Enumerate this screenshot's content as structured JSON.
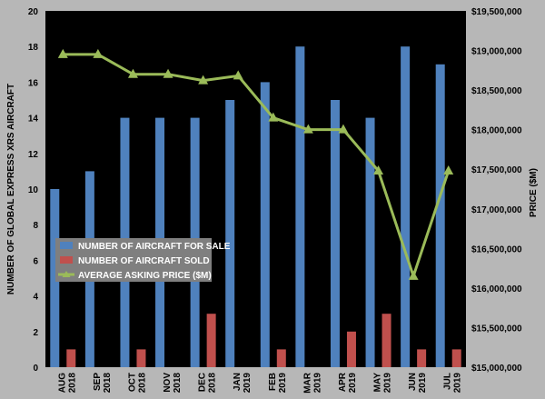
{
  "chart_data": {
    "type": "bar",
    "title": "",
    "categories": [
      [
        "AUG",
        "2018"
      ],
      [
        "SEP",
        "2018"
      ],
      [
        "OCT",
        "2018"
      ],
      [
        "NOV",
        "2018"
      ],
      [
        "DEC",
        "2018"
      ],
      [
        "JAN",
        "2019"
      ],
      [
        "FEB",
        "2019"
      ],
      [
        "MAR",
        "2019"
      ],
      [
        "APR",
        "2019"
      ],
      [
        "MAY",
        "2019"
      ],
      [
        "JUN",
        "2019"
      ],
      [
        "JUL",
        "2019"
      ]
    ],
    "series": [
      {
        "name": "NUMBER OF AIRCRAFT FOR SALE",
        "type": "bar",
        "axis": "left",
        "color": "#4f81bd",
        "values": [
          10,
          11,
          14,
          14,
          14,
          15,
          16,
          18,
          15,
          14,
          18,
          17
        ]
      },
      {
        "name": "NUMBER OF AIRCRAFT SOLD",
        "type": "bar",
        "axis": "left",
        "color": "#c0504d",
        "values": [
          1,
          0,
          1,
          0,
          3,
          0,
          1,
          0,
          2,
          3,
          1,
          1
        ]
      },
      {
        "name": "AVERAGE ASKING PRICE ($M)",
        "type": "line",
        "axis": "right",
        "color": "#9bbb59",
        "values": [
          18950000,
          18950000,
          18700000,
          18700000,
          18620000,
          18680000,
          18150000,
          18000000,
          18000000,
          17480000,
          16150000,
          17480000
        ]
      }
    ],
    "ylabel": "NUMBER OF GLOBAL EXPRESS XRS AIRCRAFT",
    "y2label": "PRICE ($M)",
    "ylim": [
      0,
      20
    ],
    "yticks": [
      "0",
      "2",
      "4",
      "6",
      "8",
      "10",
      "12",
      "14",
      "16",
      "18",
      "20"
    ],
    "y2lim": [
      15000000,
      19500000
    ],
    "y2ticks": [
      "$15,000,000",
      "$15,500,000",
      "$16,000,000",
      "$16,500,000",
      "$17,000,000",
      "$17,500,000",
      "$18,000,000",
      "$18,500,000",
      "$19,000,000",
      "$19,500,000"
    ],
    "grid": false,
    "legend_position": "left-middle",
    "colors": {
      "plot_bg": "#000000",
      "page_bg": "#b7b7b7",
      "legend_bg": "#7f7f7f"
    }
  }
}
